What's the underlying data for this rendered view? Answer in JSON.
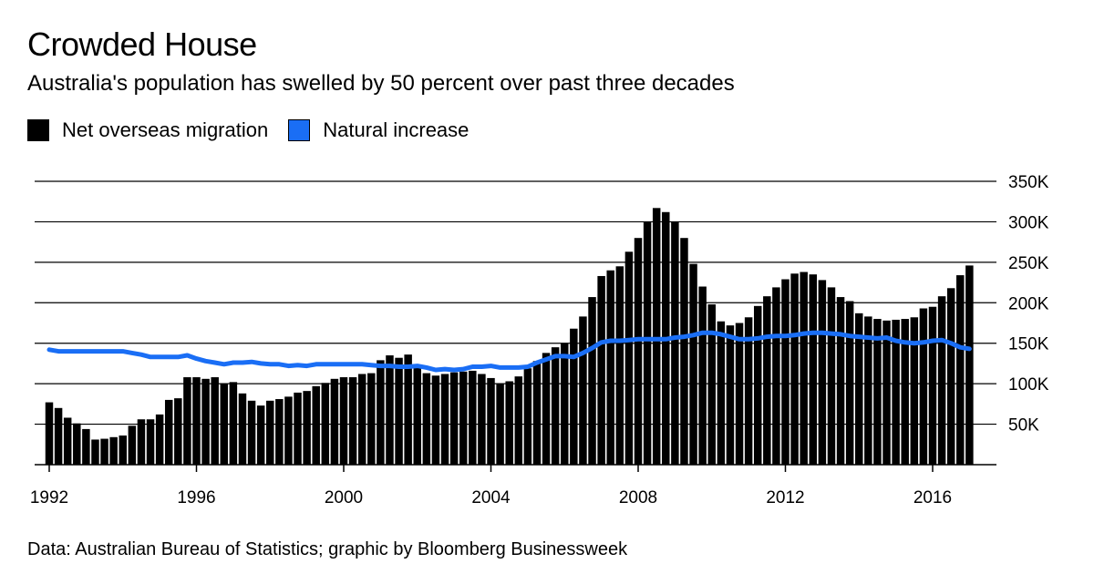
{
  "title": "Crowded House",
  "subtitle": "Australia's population has swelled by 50 percent over past three decades",
  "legend": [
    {
      "label": "Net overseas migration",
      "color": "#000000"
    },
    {
      "label": "Natural increase",
      "color": "#1a6ef5"
    }
  ],
  "source": "Data: Australian Bureau of Statistics; graphic by Bloomberg Businessweek",
  "chart_data": {
    "type": "bar",
    "x_start": 1992.0,
    "x_step": 0.25,
    "x_ticks": [
      "1992",
      "1996",
      "2000",
      "2004",
      "2008",
      "2012",
      "2016"
    ],
    "x_tick_values": [
      1992,
      1996,
      2000,
      2004,
      2008,
      2012,
      2016
    ],
    "y_ticks": [
      "50K",
      "100K",
      "150K",
      "200K",
      "250K",
      "300K",
      "350K"
    ],
    "y_tick_values": [
      50000,
      100000,
      150000,
      200000,
      250000,
      300000,
      350000
    ],
    "ylim": [
      0,
      350000
    ],
    "grid": true,
    "legend_position": "top-left",
    "series": [
      {
        "name": "Net overseas migration",
        "type": "bar",
        "color": "#000000",
        "values": [
          77000,
          70000,
          58000,
          51000,
          44000,
          31000,
          32000,
          34000,
          36000,
          48000,
          56000,
          56000,
          62000,
          80000,
          82000,
          108000,
          108000,
          106000,
          108000,
          100000,
          102000,
          88000,
          79000,
          73000,
          79000,
          81000,
          84000,
          89000,
          91000,
          97000,
          101000,
          106000,
          108000,
          108000,
          112000,
          113000,
          129000,
          135000,
          132000,
          136000,
          121000,
          113000,
          110000,
          112000,
          114000,
          115000,
          116000,
          112000,
          107000,
          100000,
          103000,
          109000,
          119000,
          128000,
          138000,
          145000,
          150000,
          168000,
          183000,
          207000,
          233000,
          240000,
          245000,
          263000,
          280000,
          300000,
          317000,
          312000,
          300000,
          280000,
          248000,
          220000,
          198000,
          177000,
          172000,
          175000,
          182000,
          196000,
          208000,
          219000,
          229000,
          236000,
          238000,
          235000,
          228000,
          219000,
          207000,
          202000,
          187000,
          183000,
          180000,
          178000,
          179000,
          180000,
          182000,
          193000,
          195000,
          208000,
          218000,
          234000,
          246000
        ]
      },
      {
        "name": "Natural increase",
        "type": "line",
        "color": "#1a6ef5",
        "values": [
          142000,
          140000,
          140000,
          140000,
          140000,
          140000,
          140000,
          140000,
          140000,
          138000,
          136000,
          133000,
          133000,
          133000,
          133000,
          135000,
          131000,
          128000,
          126000,
          124000,
          126000,
          126000,
          127000,
          125000,
          124000,
          124000,
          122000,
          123000,
          122000,
          124000,
          124000,
          124000,
          124000,
          124000,
          124000,
          123000,
          122000,
          122000,
          121000,
          121000,
          122000,
          120000,
          117000,
          118000,
          117000,
          118000,
          121000,
          121000,
          122000,
          120000,
          120000,
          120000,
          121000,
          126000,
          130000,
          134000,
          134000,
          133000,
          138000,
          144000,
          151000,
          153000,
          153000,
          154000,
          155000,
          155000,
          155000,
          155000,
          157000,
          158000,
          160000,
          163000,
          163000,
          161000,
          158000,
          155000,
          155000,
          156000,
          158000,
          159000,
          159000,
          160000,
          162000,
          163000,
          163000,
          162000,
          161000,
          159000,
          158000,
          157000,
          156000,
          157000,
          153000,
          151000,
          150000,
          151000,
          153000,
          154000,
          150000,
          145000,
          143000
        ]
      }
    ]
  }
}
